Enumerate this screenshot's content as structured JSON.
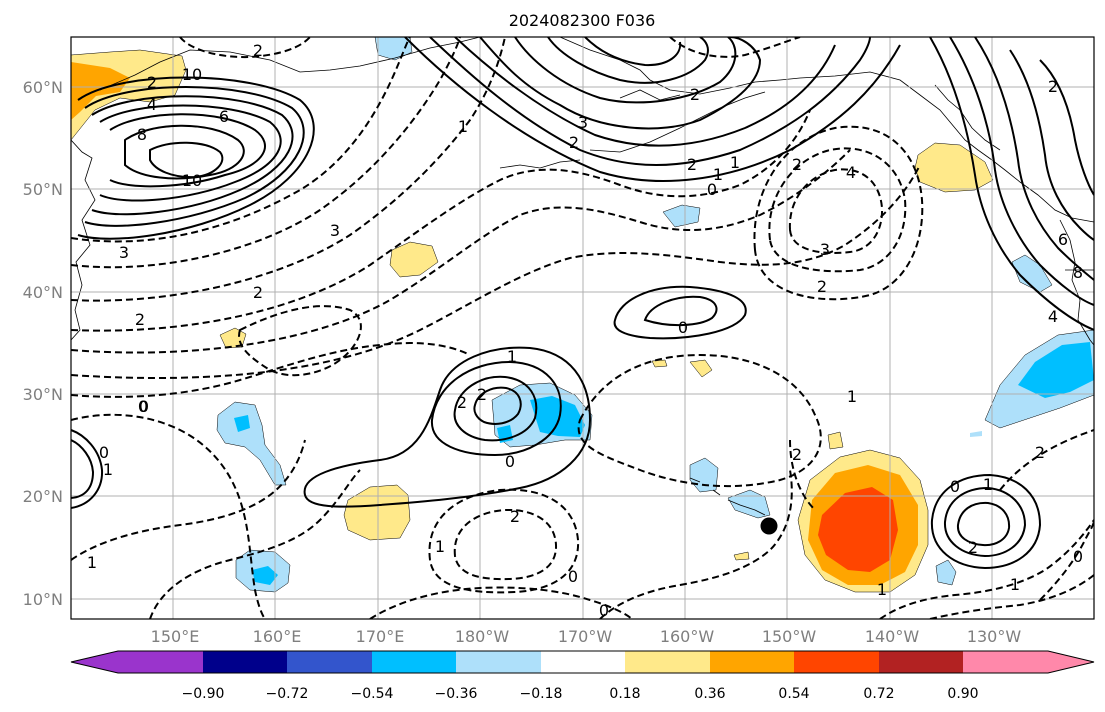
{
  "title": "2024082300 F036",
  "map": {
    "lon_labels": [
      "150°E",
      "160°E",
      "170°E",
      "180°W",
      "170°W",
      "160°W",
      "150°W",
      "140°W",
      "130°W"
    ],
    "lat_labels": [
      "60°N",
      "50°N",
      "40°N",
      "30°N",
      "20°N",
      "10°N"
    ]
  },
  "colorbar": {
    "ticks": [
      "−0.90",
      "−0.72",
      "−0.54",
      "−0.36",
      "−0.18",
      "0.18",
      "0.36",
      "0.54",
      "0.72",
      "0.90"
    ],
    "colors": [
      "#9a34cc",
      "#00008b",
      "#3355cc",
      "#00bfff",
      "#aee0fa",
      "#ffffff",
      "#ffe98a",
      "#ffa500",
      "#ff4500",
      "#b22222",
      "#ff88aa"
    ]
  },
  "contour_labels": {
    "positive": [
      "10",
      "8",
      "6",
      "4",
      "2",
      "10",
      "3",
      "2",
      "1",
      "2",
      "1",
      "0",
      "0",
      "1",
      "2",
      "2",
      "1",
      "0",
      "6",
      "4",
      "2",
      "8",
      "1",
      "2",
      "0",
      "0"
    ],
    "negative": [
      "2",
      "2",
      "3",
      "4",
      "2",
      "2",
      "2",
      "1",
      "3",
      "2",
      "3",
      "2",
      "1",
      "1",
      "0",
      "2",
      "1",
      "0",
      "2",
      "1",
      "1",
      "0",
      "0",
      "0"
    ]
  },
  "marker": {
    "lon_label": "155°W",
    "lat_label": "17°N"
  }
}
